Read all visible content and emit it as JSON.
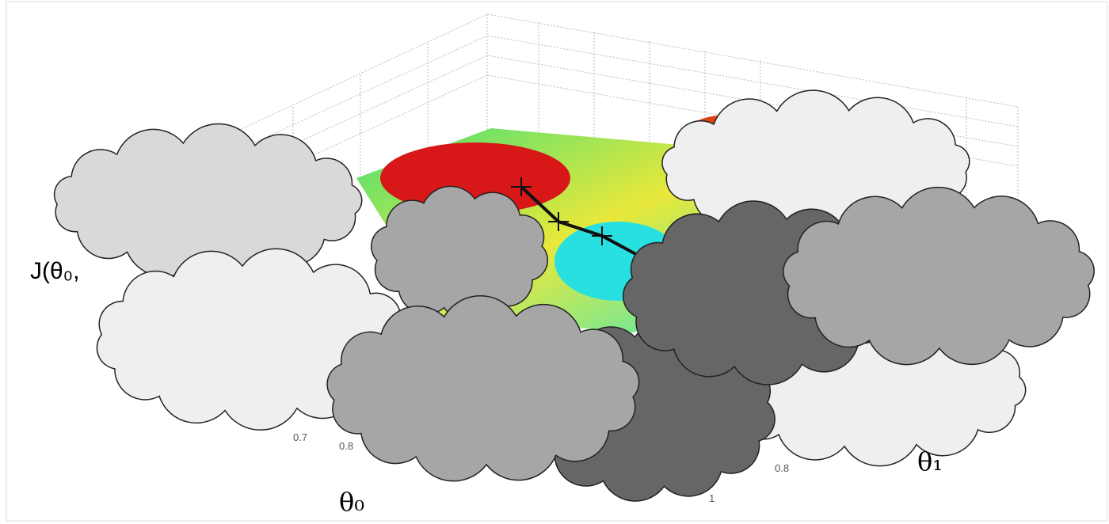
{
  "axis_labels": {
    "theta0": "θ₀",
    "theta1": "θ₁",
    "cost": "J(θ₀,"
  },
  "tick_labels": [
    "0.7",
    "0.8",
    "0.8",
    "1"
  ]
}
